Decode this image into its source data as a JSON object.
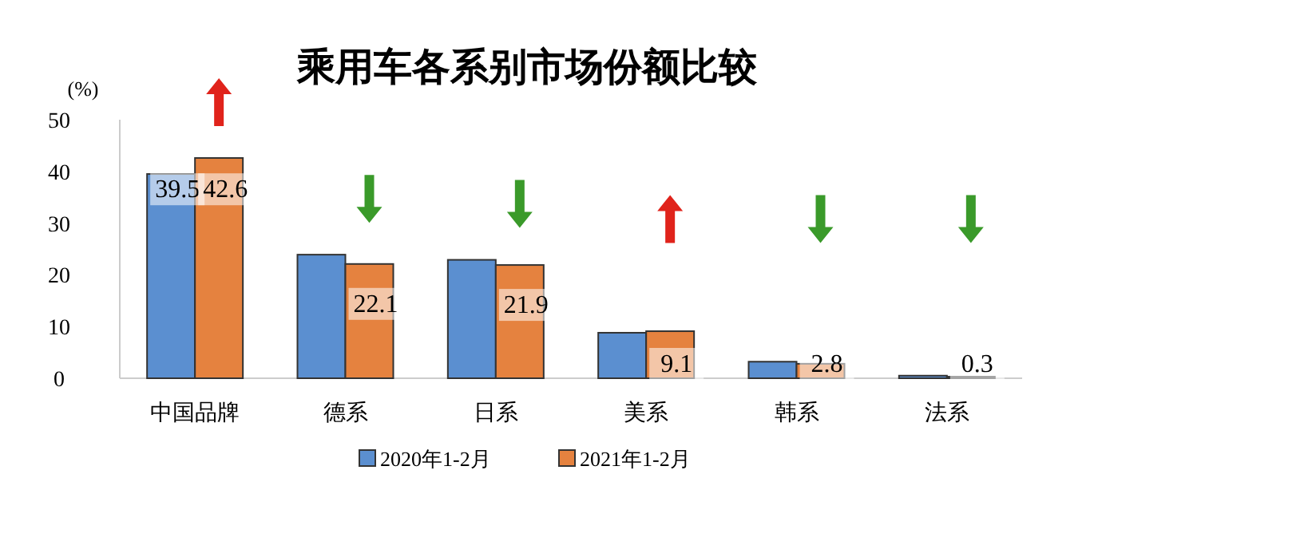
{
  "chart_data": {
    "type": "bar",
    "title": "乘用车各系别市场份额比较",
    "ylabel": "(%)",
    "categories": [
      "中国品牌",
      "德系",
      "日系",
      "美系",
      "韩系",
      "法系"
    ],
    "series": [
      {
        "name": "2020年1-2月",
        "color": "#5b8fd0",
        "values": [
          39.5,
          23.9,
          22.9,
          8.8,
          3.2,
          0.5
        ],
        "value_labels": [
          "39.5",
          null,
          null,
          null,
          null,
          null
        ]
      },
      {
        "name": "2021年1-2月",
        "color": "#e5823f",
        "values": [
          42.6,
          22.1,
          21.9,
          9.1,
          2.8,
          0.3
        ],
        "value_labels": [
          "42.6",
          "22.1",
          "21.9",
          "9.1",
          "2.8",
          "0.3"
        ]
      }
    ],
    "ylim": [
      0,
      50
    ],
    "yticks": [
      0,
      10,
      20,
      30,
      40,
      50
    ],
    "grid": false,
    "legend": "bottom"
  }
}
